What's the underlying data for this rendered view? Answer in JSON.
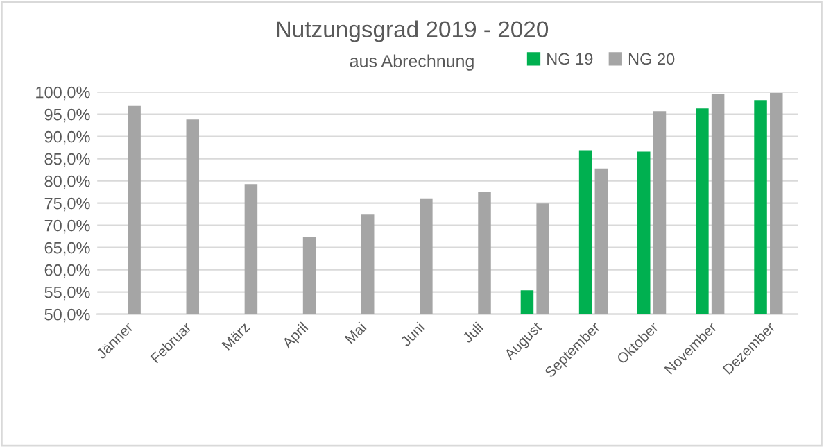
{
  "chart_data": {
    "type": "bar",
    "title": "Nutzungsgrad 2019 - 2020",
    "subtitle": "aus Abrechnung",
    "categories": [
      "Jänner",
      "Februar",
      "März",
      "April",
      "Mai",
      "Juni",
      "Juli",
      "August",
      "September",
      "Oktober",
      "November",
      "Dezember"
    ],
    "series": [
      {
        "name": "NG 19",
        "color": "#00b050",
        "values": [
          null,
          null,
          null,
          null,
          null,
          null,
          null,
          55.4,
          86.9,
          86.6,
          96.3,
          98.2
        ]
      },
      {
        "name": "NG 20",
        "color": "#a5a5a5",
        "values": [
          97.0,
          93.8,
          79.3,
          67.4,
          72.4,
          76.1,
          77.6,
          74.9,
          82.8,
          95.7,
          99.5,
          99.8
        ]
      }
    ],
    "ylim": [
      50,
      100
    ],
    "yticks": [
      {
        "value": 50,
        "label": "50,0%"
      },
      {
        "value": 55,
        "label": "55,0%"
      },
      {
        "value": 60,
        "label": "60,0%"
      },
      {
        "value": 65,
        "label": "65,0%"
      },
      {
        "value": 70,
        "label": "70,0%"
      },
      {
        "value": 75,
        "label": "75,0%"
      },
      {
        "value": 80,
        "label": "80,0%"
      },
      {
        "value": 85,
        "label": "85,0%"
      },
      {
        "value": 90,
        "label": "90,0%"
      },
      {
        "value": 95,
        "label": "95,0%"
      },
      {
        "value": 100,
        "label": "100,0%"
      }
    ],
    "grid": "y",
    "legend": "top right"
  }
}
